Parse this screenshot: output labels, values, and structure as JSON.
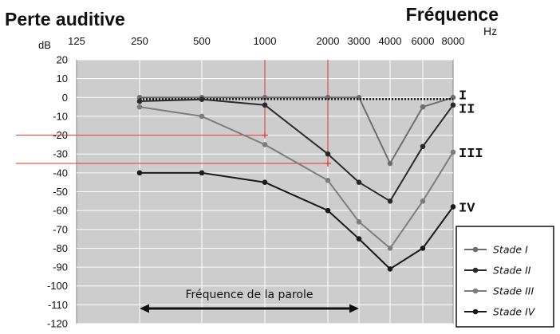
{
  "chart_data": {
    "type": "line",
    "title": "Perte auditive",
    "ylabel": "dB",
    "xlabel": "Fréquence",
    "x_unit": "Hz",
    "x_scale": "log",
    "categories": [
      "125",
      "250",
      "500",
      "1000",
      "2000",
      "3000",
      "4000",
      "6000",
      "8000"
    ],
    "x": [
      125,
      250,
      500,
      1000,
      2000,
      3000,
      4000,
      6000,
      8000
    ],
    "ylim": [
      -120,
      20
    ],
    "yticks": [
      20,
      10,
      0,
      -10,
      -20,
      -30,
      -40,
      -50,
      -60,
      -70,
      -80,
      -90,
      -100,
      -110,
      -120
    ],
    "grid": true,
    "legend_position": "bottom-right",
    "series": [
      {
        "name": "Stade I",
        "roman": "I",
        "color": "#6e6e6e",
        "dotted": true,
        "x": [
          250,
          500,
          1000,
          2000,
          3000,
          4000,
          6000,
          8000
        ],
        "values": [
          0,
          0,
          0,
          0,
          0,
          -35,
          -5,
          0
        ]
      },
      {
        "name": "Stade II",
        "roman": "II",
        "color": "#2a2a2a",
        "dotted": false,
        "x": [
          250,
          500,
          1000,
          2000,
          3000,
          4000,
          6000,
          8000
        ],
        "values": [
          -2,
          -1,
          -4,
          -30,
          -45,
          -55,
          -26,
          -4
        ]
      },
      {
        "name": "Stade III",
        "roman": "III",
        "color": "#7d7d7d",
        "dotted": false,
        "x": [
          250,
          500,
          1000,
          2000,
          3000,
          4000,
          6000,
          8000
        ],
        "values": [
          -5,
          -10,
          -25,
          -44,
          -66,
          -80,
          -55,
          -29
        ]
      },
      {
        "name": "Stade IV",
        "roman": "IV",
        "color": "#1a1a1a",
        "dotted": false,
        "x": [
          250,
          500,
          1000,
          2000,
          3000,
          4000,
          6000,
          8000
        ],
        "values": [
          -40,
          -40,
          -45,
          -60,
          -75,
          -91,
          -80,
          -58
        ]
      }
    ],
    "reference_points": [
      {
        "x": 1000,
        "y": -20
      },
      {
        "x": 2000,
        "y": -35
      }
    ],
    "annotation": {
      "text": "Fréquence de la parole",
      "x_start": 250,
      "x_end": 3000,
      "y": -109
    },
    "colors": {
      "plot_bg": "#cdcdcd",
      "grid": "#ffffff",
      "reference": "#e63232",
      "arrow": "#111111"
    }
  }
}
